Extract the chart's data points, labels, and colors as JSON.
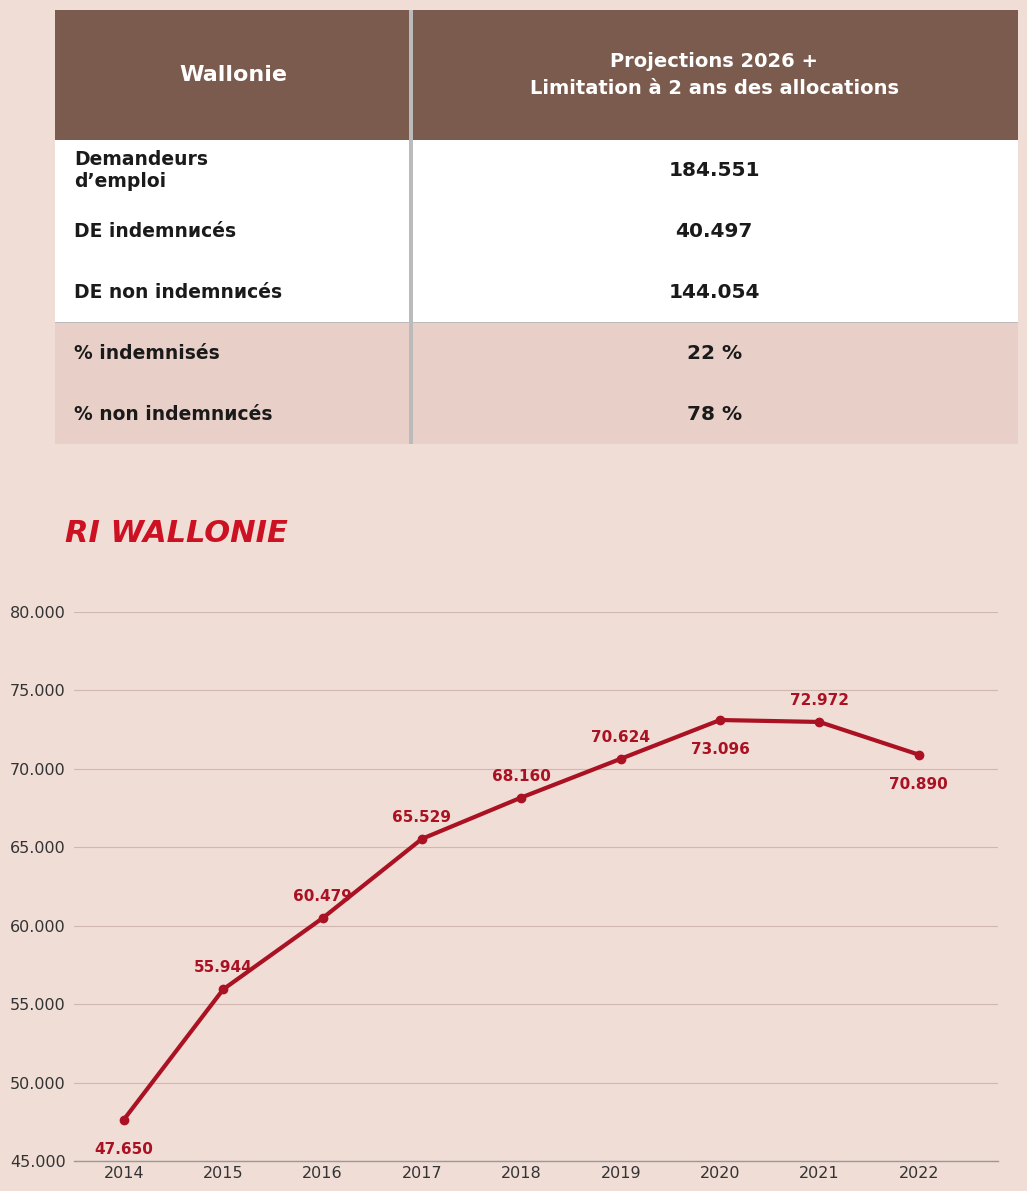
{
  "table": {
    "header_col1": "Wallonie",
    "header_col2": "Projections 2026 +\nLimitation à 2 ans des allocations",
    "header_bg": "#7B5B4E",
    "header_text_color": "#FFFFFF",
    "rows": [
      {
        "label": "Demandeurs\nd’emploi",
        "value": "184.551"
      },
      {
        "label": "DE indemnисés",
        "value": "40.497"
      },
      {
        "label": "DE non indemnисés",
        "value": "144.054"
      }
    ],
    "highlight_rows": [
      {
        "label": "% indemnisés",
        "value": "22 %"
      },
      {
        "label": "% non indemnисés",
        "value": "78 %"
      }
    ],
    "row_bg": "#FFFFFF",
    "highlight_bg": "#E8D0C8",
    "divider_color": "#BBBBBB",
    "col_split": 0.37
  },
  "chart": {
    "title": "RI WALLONIE",
    "title_color": "#CC1122",
    "title_style": "italic",
    "title_fontsize": 22,
    "years": [
      2014,
      2015,
      2016,
      2017,
      2018,
      2019,
      2020,
      2021,
      2022
    ],
    "values": [
      47650,
      55944,
      60479,
      65529,
      68160,
      70624,
      73096,
      72972,
      70890
    ],
    "labels": [
      "47.650",
      "55.944",
      "60.479",
      "65.529",
      "68.160",
      "70.624",
      "73.096",
      "72.972",
      "70.890"
    ],
    "label_offsets_above": [
      false,
      true,
      true,
      true,
      true,
      true,
      false,
      true,
      false
    ],
    "line_color": "#AA1122",
    "line_width": 3.0,
    "marker": "o",
    "marker_size": 6,
    "label_color": "#AA1122",
    "label_fontsize": 11,
    "ylim": [
      45000,
      80000
    ],
    "yticks": [
      45000,
      50000,
      55000,
      60000,
      65000,
      70000,
      75000,
      80000
    ],
    "ytick_labels": [
      "45.000",
      "50.000",
      "55.000",
      "60.000",
      "65.000",
      "70.000",
      "75.000",
      "80.000"
    ],
    "plot_bg": "#F0DDD5",
    "grid_color": "#D0B8B0",
    "xlim_left": 2013.5,
    "xlim_right": 2022.8
  },
  "overall_bg": "#F0DDD5"
}
